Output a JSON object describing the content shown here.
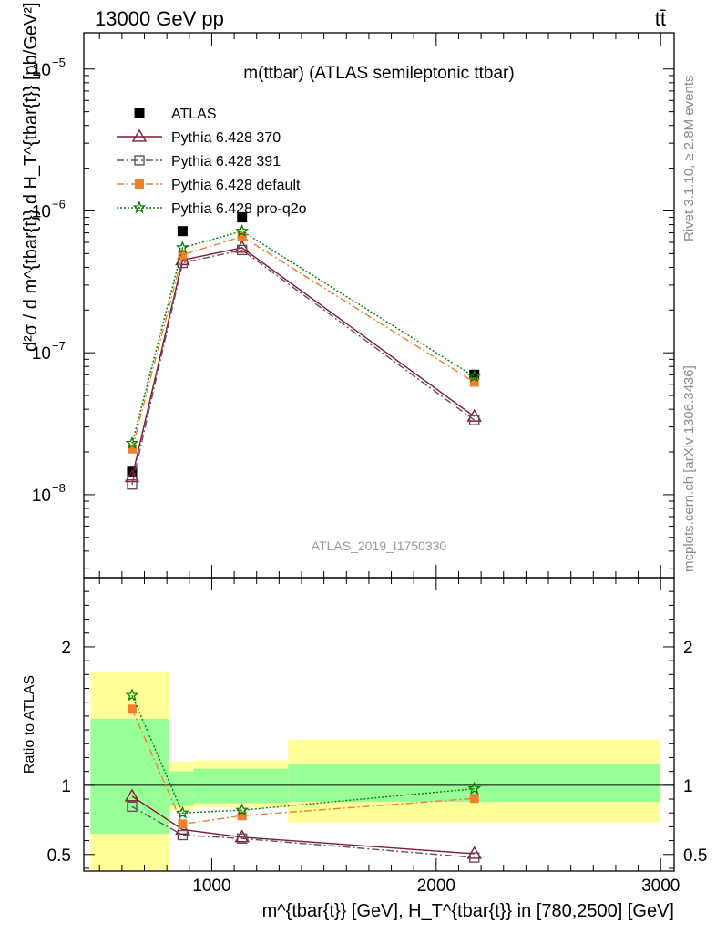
{
  "header": {
    "energy_label": "13000 GeV pp",
    "process_label": "tt̄"
  },
  "side_labels": {
    "rivet": "Rivet 3.1.10, ≥ 2.8M events",
    "source": "mcplots.cern.ch [arXiv:1306.3436]"
  },
  "chart_data": {
    "type": "scatter",
    "title": "m(ttbar) (ATLAS semileptonic ttbar)",
    "analysis_id": "ATLAS_2019_I1750330",
    "xlabel": "m^{tbar{t}} [GeV], H_T^{tbar{t}} in [780,2500] [GeV]",
    "ylabel_main": "d²σ / d m^{tbar{t}} d H_T^{tbar{t}} [pb/GeV²]",
    "ylabel_ratio": "Ratio to ATLAS",
    "xlim": [
      430,
      3060
    ],
    "ylim_main": [
      2.6e-09,
      1.8e-05
    ],
    "ylim_ratio": [
      0.38,
      2.5
    ],
    "yscale_main": "log",
    "x_ticks": [
      "1000",
      "2000",
      "3000"
    ],
    "y_ticks_main": [
      "10^{-8}",
      "10^{-7}",
      "10^{-6}",
      "10^{-5}"
    ],
    "y_ticks_ratio": [
      "0.5",
      "1",
      "2"
    ],
    "legend_position": "top-left",
    "colors": {
      "data": "#000000",
      "p370": "#7f1d2e",
      "p391": "#6b4a63",
      "pdefault": "#f08030",
      "pq2o": "#008000",
      "band_inner": "#99ff99",
      "band_outer": "#ffff99"
    },
    "bins": [
      {
        "xlo": 460,
        "xhi": 810,
        "inner": [
          0.65,
          1.48
        ],
        "outer": [
          0.35,
          1.82
        ]
      },
      {
        "xlo": 810,
        "xhi": 920,
        "inner": [
          0.85,
          1.1
        ],
        "outer": [
          0.82,
          1.17
        ]
      },
      {
        "xlo": 920,
        "xhi": 1340,
        "inner": [
          0.87,
          1.12
        ],
        "outer": [
          0.84,
          1.18
        ]
      },
      {
        "xlo": 1340,
        "xhi": 3000,
        "inner": [
          0.88,
          1.15
        ],
        "outer": [
          0.73,
          1.33
        ]
      }
    ],
    "series": [
      {
        "name": "ATLAS",
        "key": "data",
        "x": [
          645,
          870,
          1135,
          2170
        ],
        "y": [
          1.45e-08,
          7.2e-07,
          9e-07,
          7e-08
        ],
        "ratio": [
          1,
          1,
          1,
          1
        ]
      },
      {
        "name": "Pythia 6.428 370",
        "key": "p370",
        "x": [
          645,
          870,
          1135,
          2170
        ],
        "y": [
          1.33e-08,
          4.5e-07,
          5.5e-07,
          3.55e-08
        ],
        "ratio": [
          0.92,
          0.68,
          0.625,
          0.505
        ]
      },
      {
        "name": "Pythia 6.428 391",
        "key": "p391",
        "x": [
          645,
          870,
          1135,
          2170
        ],
        "y": [
          1.18e-08,
          4.3e-07,
          5.3e-07,
          3.35e-08
        ],
        "ratio": [
          0.845,
          0.64,
          0.615,
          0.478
        ]
      },
      {
        "name": "Pythia 6.428 default",
        "key": "pdefault",
        "x": [
          645,
          870,
          1135,
          2170
        ],
        "y": [
          2.1e-08,
          4.9e-07,
          6.6e-07,
          6.2e-08
        ],
        "ratio": [
          1.55,
          0.72,
          0.78,
          0.905
        ]
      },
      {
        "name": "Pythia 6.428 pro-q2o",
        "key": "pq2o",
        "x": [
          645,
          870,
          1135,
          2170
        ],
        "y": [
          2.3e-08,
          5.5e-07,
          7.2e-07,
          6.8e-08
        ],
        "ratio": [
          1.65,
          0.8,
          0.82,
          0.975
        ]
      }
    ]
  }
}
